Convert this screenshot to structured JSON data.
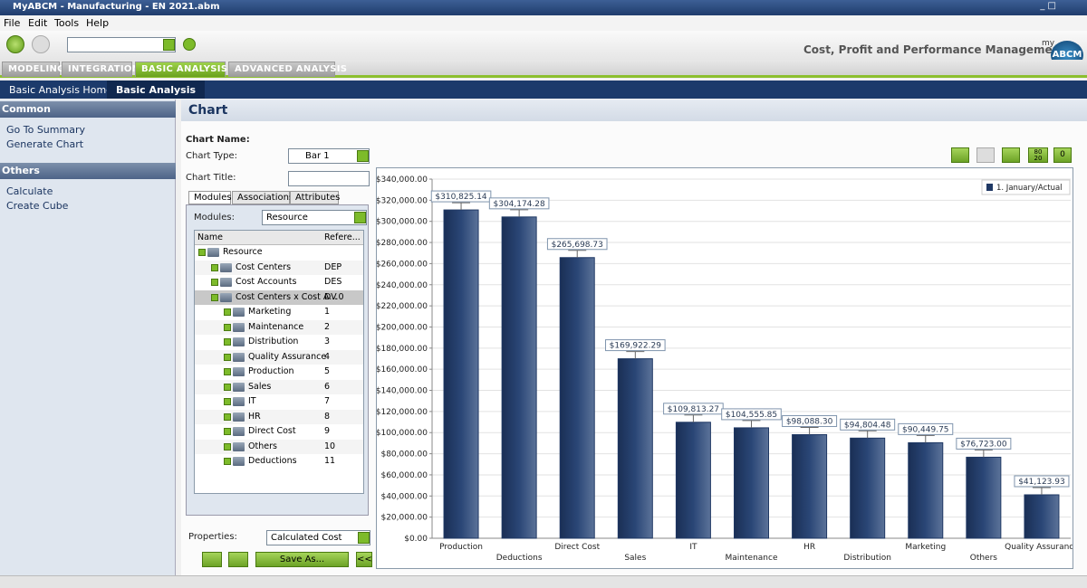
{
  "window": {
    "title": "MyABCM - Manufacturing - EN 2021.abm"
  },
  "menu": [
    "File",
    "Edit",
    "Tools",
    "Help"
  ],
  "header": {
    "tagline": "Cost, Profit and Performance Management",
    "logo_small": "my",
    "logo": "ABCM"
  },
  "tabs": [
    "MODELING",
    "INTEGRATION",
    "BASIC ANALYSIS",
    "ADVANCED ANALYSIS"
  ],
  "subtabs": [
    "Basic Analysis Home",
    "Basic Analysis"
  ],
  "sidebar": [
    {
      "title": "Common",
      "items": [
        "Go To Summary",
        "Generate Chart"
      ]
    },
    {
      "title": "Others",
      "items": [
        "Calculate",
        "Create Cube"
      ]
    }
  ],
  "panel": {
    "title": "Chart"
  },
  "form": {
    "chart_name_label": "Chart Name:",
    "chart_type_label": "Chart Type:",
    "chart_type_value": "Bar 1",
    "chart_title_label": "Chart Title:",
    "module_tabs": [
      "Modules",
      "Associations",
      "Attributes"
    ],
    "modules_label": "Modules:",
    "modules_value": "Resource",
    "tree_columns": [
      "Name",
      "Refere..."
    ],
    "tree_rows": [
      {
        "name": "Resource",
        "ref": ""
      },
      {
        "name": "Cost Centers",
        "ref": "DEP"
      },
      {
        "name": "Cost Accounts",
        "ref": "DES"
      },
      {
        "name": "Cost Centers x Cost A...",
        "ref": "DV.0"
      },
      {
        "name": "Marketing",
        "ref": "1"
      },
      {
        "name": "Maintenance",
        "ref": "2"
      },
      {
        "name": "Distribution",
        "ref": "3"
      },
      {
        "name": "Quality Assurance",
        "ref": "4"
      },
      {
        "name": "Production",
        "ref": "5"
      },
      {
        "name": "Sales",
        "ref": "6"
      },
      {
        "name": "IT",
        "ref": "7"
      },
      {
        "name": "HR",
        "ref": "8"
      },
      {
        "name": "Direct Cost",
        "ref": "9"
      },
      {
        "name": "Others",
        "ref": "10"
      },
      {
        "name": "Deductions",
        "ref": "11"
      }
    ],
    "properties_label": "Properties:",
    "properties_value": "Calculated Cost",
    "save_button": "Save As...",
    "collapse_button": "<<"
  },
  "toolbar_labels": [
    "80",
    "20",
    "0"
  ],
  "chart_data": {
    "type": "bar",
    "categories": [
      "Production",
      "Deductions",
      "Direct Cost",
      "Sales",
      "IT",
      "Maintenance",
      "HR",
      "Distribution",
      "Marketing",
      "Others",
      "Quality Assurance"
    ],
    "series": [
      {
        "name": "1. January/Actual",
        "color": "#1f3864",
        "values": [
          310825.14,
          304174.28,
          265698.73,
          169922.29,
          109813.27,
          104555.85,
          98088.3,
          94804.48,
          90449.75,
          76723.0,
          41123.93
        ],
        "value_labels": [
          "$310,825.14",
          "$304,174.28",
          "$265,698.73",
          "$169,922.29",
          "$109,813.27",
          "$104,555.85",
          "$98,088.30",
          "$94,804.48",
          "$90,449.75",
          "$76,723.00",
          "$41,123.93"
        ]
      }
    ],
    "ylim": [
      0,
      340000
    ],
    "yticks": [
      {
        "value": 0,
        "label": "$0.00"
      },
      {
        "value": 20000,
        "label": "$20,000.00"
      },
      {
        "value": 40000,
        "label": "$40,000.00"
      },
      {
        "value": 60000,
        "label": "$60,000.00"
      },
      {
        "value": 80000,
        "label": "$80,000.00"
      },
      {
        "value": 100000,
        "label": "$100,000.00"
      },
      {
        "value": 120000,
        "label": "$120,000.00"
      },
      {
        "value": 140000,
        "label": "$140,000.00"
      },
      {
        "value": 160000,
        "label": "$160,000.00"
      },
      {
        "value": 180000,
        "label": "$180,000.00"
      },
      {
        "value": 200000,
        "label": "$200,000.00"
      },
      {
        "value": 220000,
        "label": "$220,000.00"
      },
      {
        "value": 240000,
        "label": "$240,000.00"
      },
      {
        "value": 260000,
        "label": "$260,000.00"
      },
      {
        "value": 280000,
        "label": "$280,000.00"
      },
      {
        "value": 300000,
        "label": "$300,000.00"
      },
      {
        "value": 320000,
        "label": "$320,000.00"
      },
      {
        "value": 340000,
        "label": "$340,000.00"
      }
    ],
    "grid": true,
    "legend": "upper right"
  }
}
